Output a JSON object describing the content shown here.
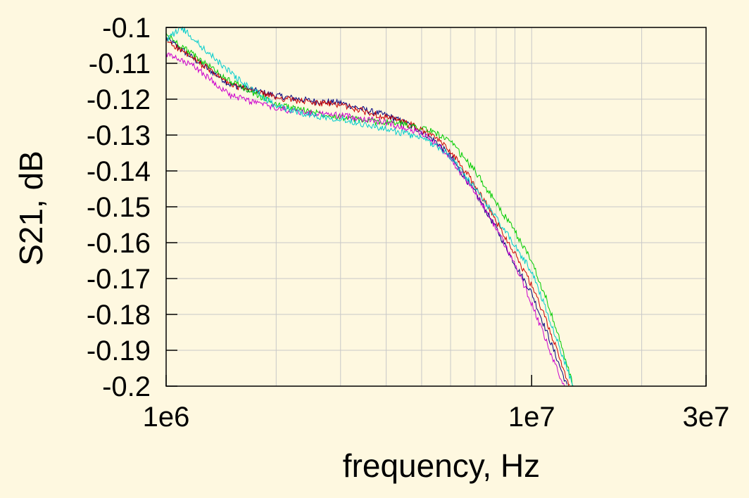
{
  "chart_data": {
    "type": "line",
    "title": "",
    "xlabel": "frequency, Hz",
    "ylabel": "S21, dB",
    "xscale": "log",
    "xlim": [
      1000000,
      30000000
    ],
    "ylim": [
      -0.2,
      -0.1
    ],
    "grid": true,
    "legend": "none",
    "x_ticks": [
      {
        "value": 1000000,
        "label": "1e6"
      },
      {
        "value": 10000000,
        "label": "1e7"
      },
      {
        "value": 30000000,
        "label": "3e7"
      }
    ],
    "y_ticks": [
      {
        "value": -0.1,
        "label": "-0.1"
      },
      {
        "value": -0.11,
        "label": "-0.11"
      },
      {
        "value": -0.12,
        "label": "-0.12"
      },
      {
        "value": -0.13,
        "label": "-0.13"
      },
      {
        "value": -0.14,
        "label": "-0.14"
      },
      {
        "value": -0.15,
        "label": "-0.15"
      },
      {
        "value": -0.16,
        "label": "-0.16"
      },
      {
        "value": -0.17,
        "label": "-0.17"
      },
      {
        "value": -0.18,
        "label": "-0.18"
      },
      {
        "value": -0.19,
        "label": "-0.19"
      },
      {
        "value": -0.2,
        "label": "-0.2"
      }
    ],
    "colors": {
      "background": "#fef8e0",
      "grid": "#c8c8c8",
      "axis": "#000000"
    },
    "series": [
      {
        "color": "#000080",
        "x": [
          1000000,
          1200000,
          1500000,
          2000000,
          2500000,
          3000000,
          3500000,
          4000000,
          4500000,
          5000000,
          5500000,
          6000000,
          7000000,
          8000000,
          9000000,
          10000000,
          11000000,
          12000000,
          12500000
        ],
        "y": [
          -0.103,
          -0.109,
          -0.116,
          -0.119,
          -0.1205,
          -0.121,
          -0.123,
          -0.1245,
          -0.1265,
          -0.129,
          -0.132,
          -0.136,
          -0.146,
          -0.156,
          -0.166,
          -0.174,
          -0.185,
          -0.195,
          -0.2
        ]
      },
      {
        "color": "#cc0000",
        "x": [
          1000000,
          1200000,
          1500000,
          2000000,
          2500000,
          3000000,
          3500000,
          4000000,
          4500000,
          5000000,
          5500000,
          6000000,
          7000000,
          8000000,
          9000000,
          10000000,
          11000000,
          12000000,
          12700000
        ],
        "y": [
          -0.1035,
          -0.109,
          -0.116,
          -0.1195,
          -0.121,
          -0.1215,
          -0.1235,
          -0.125,
          -0.1265,
          -0.1285,
          -0.131,
          -0.1345,
          -0.144,
          -0.154,
          -0.163,
          -0.172,
          -0.182,
          -0.193,
          -0.2
        ]
      },
      {
        "color": "#00cc00",
        "x": [
          1000000,
          1200000,
          1500000,
          2000000,
          2500000,
          3000000,
          3500000,
          4000000,
          4500000,
          5000000,
          5500000,
          6000000,
          7000000,
          8000000,
          9000000,
          10000000,
          11000000,
          12000000,
          13000000
        ],
        "y": [
          -0.102,
          -0.108,
          -0.115,
          -0.1215,
          -0.1235,
          -0.125,
          -0.126,
          -0.1265,
          -0.127,
          -0.128,
          -0.1295,
          -0.132,
          -0.14,
          -0.149,
          -0.157,
          -0.165,
          -0.176,
          -0.188,
          -0.2
        ]
      },
      {
        "color": "#cc00cc",
        "x": [
          1000000,
          1200000,
          1500000,
          2000000,
          2500000,
          3000000,
          3500000,
          4000000,
          4500000,
          5000000,
          5500000,
          6000000,
          7000000,
          8000000,
          9000000,
          10000000,
          11000000,
          12000000,
          12300000
        ],
        "y": [
          -0.1075,
          -0.111,
          -0.119,
          -0.1225,
          -0.124,
          -0.1245,
          -0.1255,
          -0.1265,
          -0.128,
          -0.1295,
          -0.1325,
          -0.1365,
          -0.146,
          -0.156,
          -0.166,
          -0.177,
          -0.188,
          -0.198,
          -0.2
        ]
      },
      {
        "color": "#00cccc",
        "x": [
          1000000,
          1100000,
          1300000,
          1600000,
          2000000,
          2500000,
          3000000,
          3500000,
          4000000,
          4500000,
          5000000,
          5500000,
          6000000,
          7000000,
          8000000,
          9000000,
          10000000,
          11000000,
          12000000,
          13000000
        ],
        "y": [
          -0.1035,
          -0.1,
          -0.107,
          -0.115,
          -0.122,
          -0.1245,
          -0.1255,
          -0.127,
          -0.1285,
          -0.1295,
          -0.131,
          -0.133,
          -0.136,
          -0.145,
          -0.153,
          -0.161,
          -0.168,
          -0.179,
          -0.19,
          -0.2
        ]
      }
    ]
  }
}
